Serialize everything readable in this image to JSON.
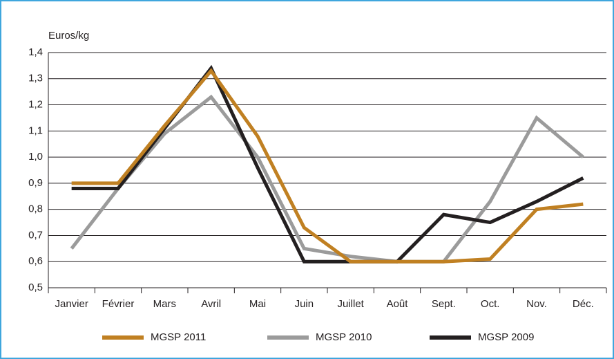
{
  "chart_data": {
    "type": "line",
    "y_axis_label": "Euros/kg",
    "categories": [
      "Janvier",
      "Février",
      "Mars",
      "Avril",
      "Mai",
      "Juin",
      "Juillet",
      "Août",
      "Sept.",
      "Oct.",
      "Nov.",
      "Déc."
    ],
    "series": [
      {
        "name": "MGSP 2010",
        "color": "#9b9b9b",
        "values": [
          0.65,
          0.88,
          1.09,
          1.23,
          1.0,
          0.65,
          0.62,
          0.6,
          0.6,
          0.83,
          1.15,
          1.0
        ]
      },
      {
        "name": "MGSP 2009",
        "color": "#231f20",
        "values": [
          0.88,
          0.88,
          1.11,
          1.34,
          0.96,
          0.6,
          0.6,
          0.6,
          0.78,
          0.75,
          0.83,
          0.92
        ]
      },
      {
        "name": "MGSP 2011",
        "color": "#c08022",
        "values": [
          0.9,
          0.9,
          1.12,
          1.33,
          1.08,
          0.73,
          0.6,
          0.6,
          0.6,
          0.61,
          0.8,
          0.82
        ]
      }
    ],
    "legend_order": [
      2,
      0,
      1
    ],
    "ylim": [
      0.5,
      1.4
    ],
    "yticks": [
      {
        "value": 0.5,
        "label": "0,5"
      },
      {
        "value": 0.6,
        "label": "0,6"
      },
      {
        "value": 0.7,
        "label": "0,7"
      },
      {
        "value": 0.8,
        "label": "0,8"
      },
      {
        "value": 0.9,
        "label": "0,9"
      },
      {
        "value": 1.0,
        "label": "1,0"
      },
      {
        "value": 1.1,
        "label": "1,1"
      },
      {
        "value": 1.2,
        "label": "1,2"
      },
      {
        "value": 1.3,
        "label": "1,3"
      },
      {
        "value": 1.4,
        "label": "1,4"
      }
    ],
    "grid": true,
    "legend": "bottom"
  }
}
